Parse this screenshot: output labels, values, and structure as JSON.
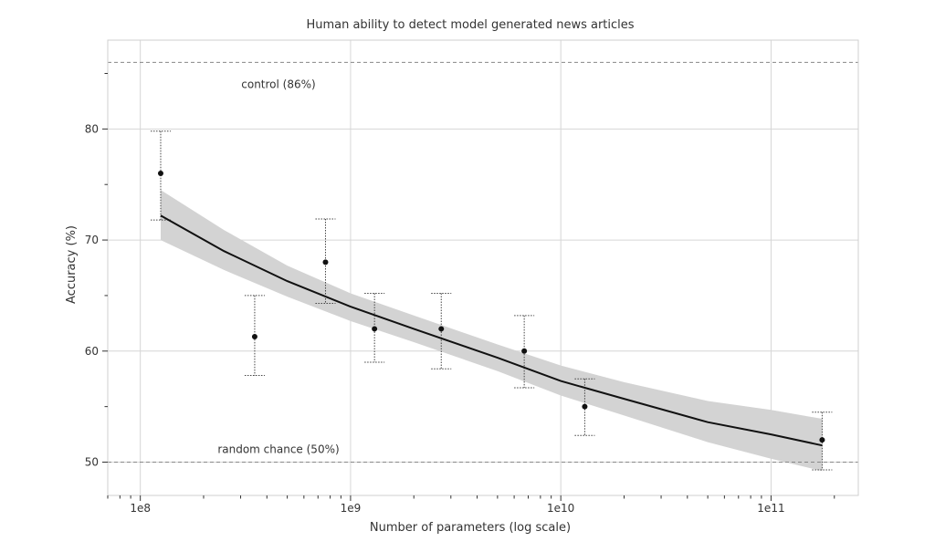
{
  "chart_data": {
    "type": "scatter",
    "title": "Human ability to detect model generated news articles",
    "xlabel": "Number of parameters (log scale)",
    "ylabel": "Accuracy (%)",
    "x_scale": "log",
    "xlim": [
      70000000,
      260000000000
    ],
    "ylim": [
      47,
      88
    ],
    "x_ticks": [
      {
        "value": 100000000,
        "label": "1e8"
      },
      {
        "value": 1000000000,
        "label": "1e9"
      },
      {
        "value": 10000000000,
        "label": "1e10"
      },
      {
        "value": 100000000000,
        "label": "1e11"
      }
    ],
    "y_ticks": [
      50,
      60,
      70,
      80
    ],
    "grid": true,
    "points": [
      {
        "x": 125000000,
        "y": 76.0,
        "err_low": 71.8,
        "err_high": 79.8
      },
      {
        "x": 350000000,
        "y": 61.3,
        "err_low": 57.8,
        "err_high": 65.0
      },
      {
        "x": 760000000,
        "y": 68.0,
        "err_low": 64.3,
        "err_high": 71.9
      },
      {
        "x": 1300000000,
        "y": 62.0,
        "err_low": 59.0,
        "err_high": 65.2
      },
      {
        "x": 2700000000,
        "y": 62.0,
        "err_low": 58.4,
        "err_high": 65.2
      },
      {
        "x": 6700000000,
        "y": 60.0,
        "err_low": 56.7,
        "err_high": 63.2
      },
      {
        "x": 13000000000,
        "y": 55.0,
        "err_low": 52.4,
        "err_high": 57.5
      },
      {
        "x": 175000000000,
        "y": 52.0,
        "err_low": 49.3,
        "err_high": 54.5
      }
    ],
    "fit_line": {
      "x": [
        125000000,
        250000000,
        500000000,
        1000000000,
        2000000000,
        5000000000,
        10000000000,
        20000000000,
        50000000000,
        100000000000,
        175000000000
      ],
      "y": [
        72.2,
        69.0,
        66.3,
        64.0,
        62.0,
        59.4,
        57.3,
        55.7,
        53.6,
        52.5,
        51.5
      ],
      "band_low": [
        70.0,
        67.3,
        64.9,
        62.7,
        60.8,
        58.2,
        56.0,
        54.2,
        51.8,
        50.3,
        49.2
      ],
      "band_high": [
        74.5,
        70.9,
        67.7,
        65.2,
        63.2,
        60.6,
        58.7,
        57.2,
        55.5,
        54.7,
        53.9
      ]
    },
    "reference_lines": [
      {
        "y": 86,
        "label": "control (86%)"
      },
      {
        "y": 50,
        "label": "random chance (50%)"
      }
    ]
  }
}
